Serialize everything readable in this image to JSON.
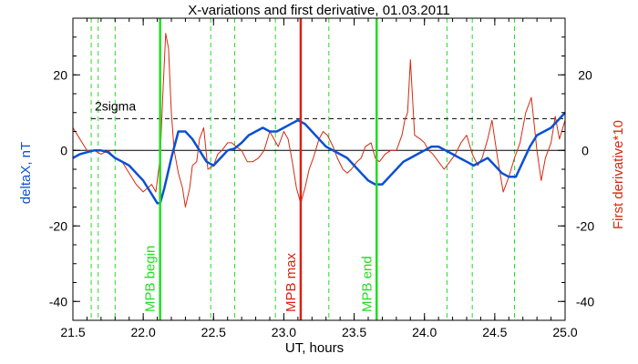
{
  "chart_data": {
    "type": "line",
    "title": "X-variations and first derivative, 01.03.2011",
    "xlabel": "UT, hours",
    "ylabel_left": "deltaX, nT",
    "ylabel_right": "First derivative*10",
    "xlim": [
      21.5,
      25.0
    ],
    "ylim": [
      -45,
      35
    ],
    "xticks": [
      "21.5",
      "22.0",
      "22.5",
      "23.0",
      "23.5",
      "24.0",
      "24.5",
      "25.0"
    ],
    "yticks": [
      "-40",
      "-20",
      "0",
      "20"
    ],
    "threshold": {
      "label": "2sigma",
      "value": 8.4
    },
    "colors": {
      "deltaX": "#0a50d2",
      "derivative": "#d52a12",
      "boundary": "#22dd22",
      "mpb_max": "#dd2010"
    },
    "vlines_dashed": [
      21.63,
      21.68,
      21.8,
      22.48,
      22.65,
      22.94,
      23.32,
      24.16,
      24.34,
      24.64
    ],
    "vlines_solid": [
      {
        "x": 22.12,
        "label": "MPB begin",
        "color": "#22dd22"
      },
      {
        "x": 23.12,
        "label": "MPB max",
        "color": "#dd2010"
      },
      {
        "x": 23.66,
        "label": "MPB end",
        "color": "#22dd22"
      }
    ],
    "series": [
      {
        "name": "deltaX",
        "x": [
          21.5,
          21.55,
          21.6,
          21.65,
          21.7,
          21.75,
          21.8,
          21.85,
          21.9,
          21.95,
          22.0,
          22.05,
          22.1,
          22.12,
          22.15,
          22.2,
          22.25,
          22.3,
          22.35,
          22.4,
          22.45,
          22.5,
          22.55,
          22.6,
          22.65,
          22.7,
          22.75,
          22.8,
          22.85,
          22.9,
          22.95,
          23.0,
          23.05,
          23.1,
          23.15,
          23.2,
          23.25,
          23.3,
          23.35,
          23.4,
          23.45,
          23.5,
          23.55,
          23.6,
          23.65,
          23.7,
          23.75,
          23.8,
          23.85,
          23.9,
          23.95,
          24.0,
          24.05,
          24.1,
          24.15,
          24.2,
          24.25,
          24.3,
          24.35,
          24.4,
          24.45,
          24.5,
          24.55,
          24.6,
          24.65,
          24.7,
          24.75,
          24.8,
          24.85,
          24.9,
          24.95,
          25.0
        ],
        "values": [
          -2,
          -1,
          -0.5,
          0,
          0,
          -0.5,
          -2,
          -3,
          -4,
          -6,
          -8,
          -11,
          -14,
          -14,
          -10,
          -2,
          5,
          5,
          3,
          0,
          -3,
          -4,
          -2,
          0,
          0.5,
          2,
          4,
          5,
          6,
          5,
          5,
          6,
          7,
          8,
          7,
          5,
          3,
          1,
          0,
          -1,
          -2,
          -4,
          -6,
          -8,
          -9,
          -9,
          -7,
          -5,
          -3,
          -2,
          -1,
          0,
          1,
          1,
          0,
          -1,
          -2,
          -3,
          -4,
          -3,
          -2,
          -4,
          -6,
          -7,
          -7,
          -3,
          1,
          4,
          5,
          6,
          8,
          10
        ]
      },
      {
        "name": "derivative",
        "x": [
          21.5,
          21.55,
          21.6,
          21.65,
          21.7,
          21.75,
          21.8,
          21.85,
          21.9,
          21.95,
          22.0,
          22.03,
          22.06,
          22.09,
          22.12,
          22.14,
          22.16,
          22.18,
          22.2,
          22.22,
          22.25,
          22.28,
          22.3,
          22.33,
          22.35,
          22.38,
          22.4,
          22.43,
          22.46,
          22.5,
          22.53,
          22.56,
          22.6,
          22.63,
          22.66,
          22.7,
          22.74,
          22.78,
          22.82,
          22.86,
          22.9,
          22.93,
          22.96,
          23.0,
          23.03,
          23.06,
          23.09,
          23.12,
          23.15,
          23.18,
          23.21,
          23.25,
          23.28,
          23.31,
          23.35,
          23.38,
          23.42,
          23.45,
          23.48,
          23.52,
          23.55,
          23.58,
          23.62,
          23.65,
          23.68,
          23.72,
          23.76,
          23.8,
          23.84,
          23.86,
          23.88,
          23.9,
          23.93,
          23.97,
          24.0,
          24.03,
          24.06,
          24.1,
          24.14,
          24.18,
          24.22,
          24.26,
          24.3,
          24.34,
          24.38,
          24.41,
          24.45,
          24.48,
          24.52,
          24.56,
          24.6,
          24.64,
          24.68,
          24.72,
          24.76,
          24.8,
          24.83,
          24.86,
          24.9,
          24.93,
          24.96,
          25.0
        ],
        "values": [
          6,
          3,
          0,
          0,
          -1,
          0,
          -2,
          -3,
          -6,
          -9,
          -11,
          -10,
          -9,
          -11,
          -2,
          15,
          31,
          27,
          10,
          0,
          -6,
          -10,
          -15,
          -10,
          -4,
          -3,
          3,
          6,
          -5,
          -4,
          -1,
          0,
          2,
          2,
          1,
          0,
          -3,
          -3,
          -2,
          0,
          5,
          3,
          1,
          5,
          3,
          -3,
          -10,
          -14,
          -10,
          -5,
          -2,
          3,
          5,
          4,
          1,
          -2,
          -5,
          -6,
          -5,
          -3,
          -2,
          1,
          2,
          -2,
          -3,
          -1,
          0,
          0,
          4,
          8,
          10,
          24,
          4,
          3,
          2,
          0,
          -1,
          -3,
          -5,
          -3,
          -1,
          2,
          4,
          -1,
          -4,
          -2,
          3,
          8,
          -2,
          -11,
          -7,
          -2,
          2,
          10,
          14,
          0,
          -8,
          -2,
          2,
          9,
          3,
          8
        ]
      }
    ]
  }
}
